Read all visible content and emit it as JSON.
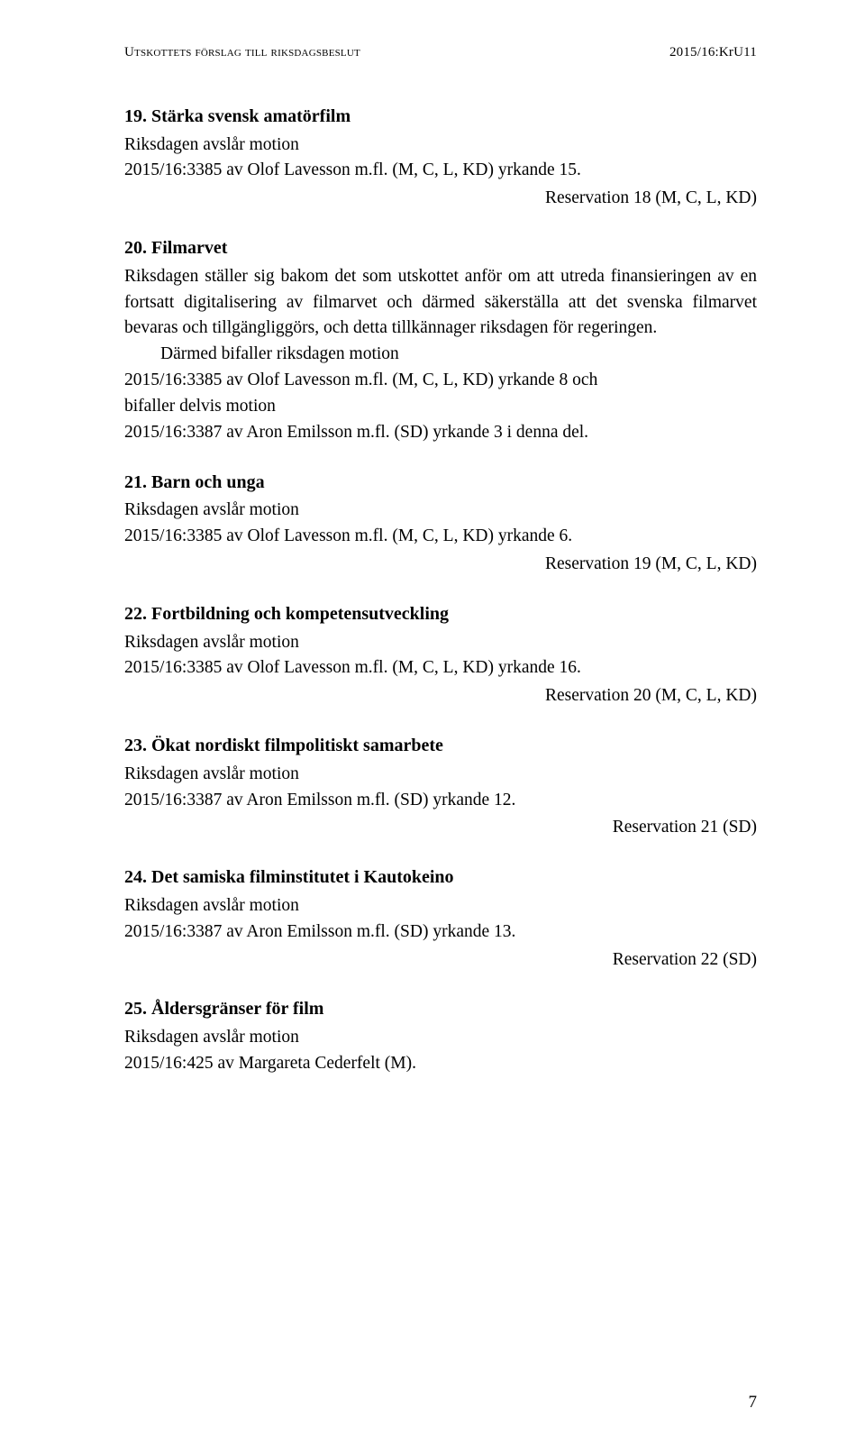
{
  "header": {
    "left": "Utskottets förslag till riksdagsbeslut",
    "right": "2015/16:KrU11"
  },
  "page_number": "7",
  "items": [
    {
      "num": "19.",
      "title": "Stärka svensk amatörfilm",
      "lines": [
        "Riksdagen avslår motion",
        "2015/16:3385 av Olof Lavesson m.fl. (M, C, L, KD) yrkande 15."
      ],
      "reservation": "Reservation 18 (M, C, L, KD)"
    },
    {
      "num": "20.",
      "title": "Filmarvet",
      "long_body": "Riksdagen ställer sig bakom det som utskottet anför om att utreda finansieringen av en fortsatt digitalisering av filmarvet och därmed säkerställa att det svenska filmarvet bevaras och tillgängliggörs, och detta tillkännager riksdagen för regeringen.",
      "indent_lines": [
        "Därmed bifaller riksdagen motion"
      ],
      "after_lines": [
        "2015/16:3385 av Olof Lavesson m.fl. (M, C, L, KD) yrkande 8 och",
        "bifaller delvis motion",
        "2015/16:3387 av Aron Emilsson m.fl. (SD) yrkande 3 i denna del."
      ]
    },
    {
      "num": "21.",
      "title": "Barn och unga",
      "lines": [
        "Riksdagen avslår motion",
        "2015/16:3385 av Olof Lavesson m.fl. (M, C, L, KD) yrkande 6."
      ],
      "reservation": "Reservation 19 (M, C, L, KD)"
    },
    {
      "num": "22.",
      "title": "Fortbildning och kompetensutveckling",
      "lines": [
        "Riksdagen avslår motion",
        "2015/16:3385 av Olof Lavesson m.fl. (M, C, L, KD) yrkande 16."
      ],
      "reservation": "Reservation 20 (M, C, L, KD)"
    },
    {
      "num": "23.",
      "title": "Ökat nordiskt filmpolitiskt samarbete",
      "lines": [
        "Riksdagen avslår motion",
        "2015/16:3387 av Aron Emilsson m.fl. (SD) yrkande 12."
      ],
      "reservation": "Reservation 21 (SD)"
    },
    {
      "num": "24.",
      "title": "Det samiska filminstitutet i Kautokeino",
      "lines": [
        "Riksdagen avslår motion",
        "2015/16:3387 av Aron Emilsson m.fl. (SD) yrkande 13."
      ],
      "reservation": "Reservation 22 (SD)"
    },
    {
      "num": "25.",
      "title": "Åldersgränser för film",
      "lines": [
        "Riksdagen avslår motion",
        "2015/16:425 av Margareta Cederfelt (M)."
      ]
    }
  ]
}
